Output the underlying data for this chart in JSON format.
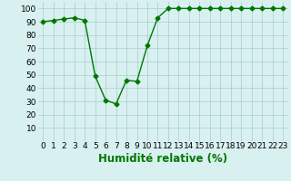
{
  "x": [
    0,
    1,
    2,
    3,
    4,
    5,
    6,
    7,
    8,
    9,
    10,
    11,
    12,
    13,
    14,
    15,
    16,
    17,
    18,
    19,
    20,
    21,
    22,
    23
  ],
  "y": [
    90,
    91,
    92,
    93,
    91,
    49,
    31,
    28,
    46,
    45,
    72,
    93,
    100,
    100,
    100,
    100,
    100,
    100,
    100,
    100,
    100,
    100,
    100,
    100
  ],
  "line_color": "#007700",
  "marker": "D",
  "marker_size": 2.5,
  "bg_color": "#d8f0f0",
  "grid_color": "#aacccc",
  "xlabel": "Humidité relative (%)",
  "xlabel_color": "#007700",
  "ylim": [
    0,
    105
  ],
  "yticks": [
    10,
    20,
    30,
    40,
    50,
    60,
    70,
    80,
    90,
    100
  ],
  "xlim": [
    -0.5,
    23.5
  ],
  "tick_fontsize": 6.5,
  "xlabel_fontsize": 8.5
}
